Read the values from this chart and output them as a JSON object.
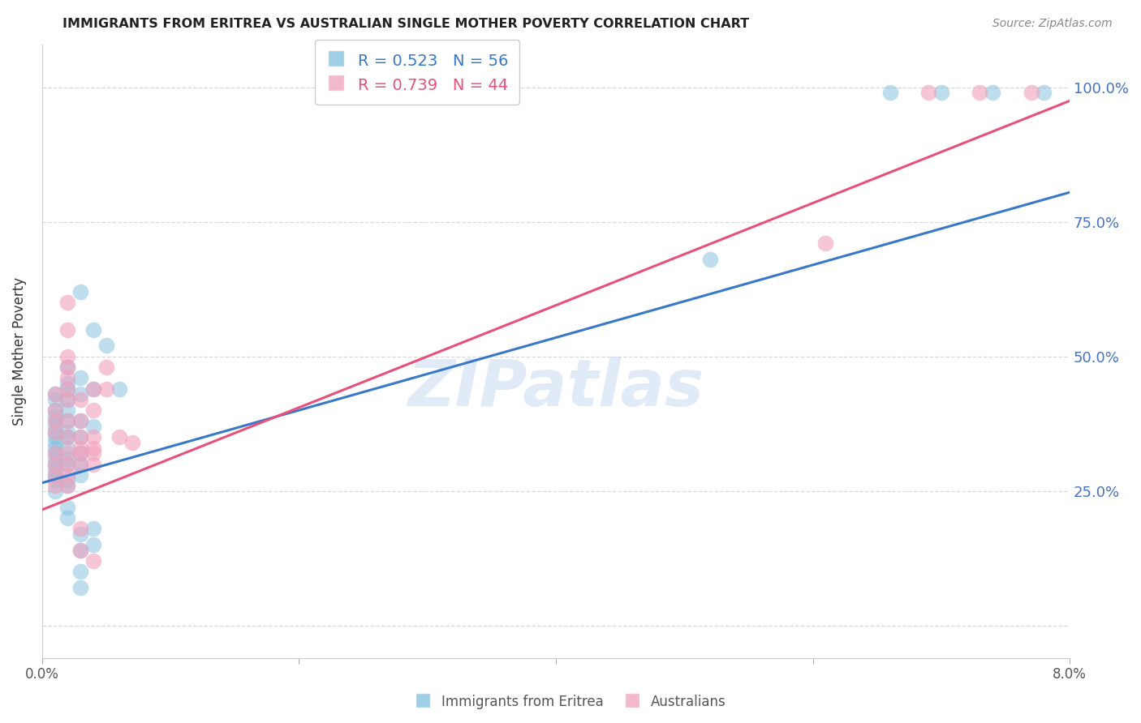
{
  "title": "IMMIGRANTS FROM ERITREA VS AUSTRALIAN SINGLE MOTHER POVERTY CORRELATION CHART",
  "source": "Source: ZipAtlas.com",
  "ylabel": "Single Mother Poverty",
  "yticks": [
    0.0,
    0.25,
    0.5,
    0.75,
    1.0
  ],
  "ytick_labels": [
    "",
    "25.0%",
    "50.0%",
    "75.0%",
    "100.0%"
  ],
  "xlim": [
    0.0,
    0.08
  ],
  "ylim": [
    -0.06,
    1.08
  ],
  "watermark": "ZIPatlas",
  "blue_color": "#7fbfdf",
  "pink_color": "#f0a0bc",
  "blue_line_color": "#3878c8",
  "pink_line_color": "#e8507a",
  "ytick_color": "#4472c4",
  "xtick_color": "#555555",
  "grid_color": "#d8d8d8",
  "blue_scatter": [
    [
      0.001,
      0.32
    ],
    [
      0.001,
      0.38
    ],
    [
      0.001,
      0.34
    ],
    [
      0.001,
      0.3
    ],
    [
      0.001,
      0.36
    ],
    [
      0.001,
      0.28
    ],
    [
      0.001,
      0.33
    ],
    [
      0.001,
      0.31
    ],
    [
      0.001,
      0.29
    ],
    [
      0.001,
      0.27
    ],
    [
      0.001,
      0.35
    ],
    [
      0.001,
      0.4
    ],
    [
      0.001,
      0.37
    ],
    [
      0.001,
      0.43
    ],
    [
      0.001,
      0.42
    ],
    [
      0.001,
      0.39
    ],
    [
      0.001,
      0.25
    ],
    [
      0.002,
      0.38
    ],
    [
      0.002,
      0.42
    ],
    [
      0.002,
      0.36
    ],
    [
      0.002,
      0.33
    ],
    [
      0.002,
      0.31
    ],
    [
      0.002,
      0.4
    ],
    [
      0.002,
      0.45
    ],
    [
      0.002,
      0.35
    ],
    [
      0.002,
      0.48
    ],
    [
      0.002,
      0.44
    ],
    [
      0.002,
      0.3
    ],
    [
      0.002,
      0.27
    ],
    [
      0.002,
      0.22
    ],
    [
      0.002,
      0.26
    ],
    [
      0.002,
      0.2
    ],
    [
      0.003,
      0.46
    ],
    [
      0.003,
      0.43
    ],
    [
      0.003,
      0.38
    ],
    [
      0.003,
      0.35
    ],
    [
      0.003,
      0.32
    ],
    [
      0.003,
      0.3
    ],
    [
      0.003,
      0.28
    ],
    [
      0.003,
      0.14
    ],
    [
      0.003,
      0.17
    ],
    [
      0.003,
      0.1
    ],
    [
      0.003,
      0.07
    ],
    [
      0.003,
      0.62
    ],
    [
      0.004,
      0.44
    ],
    [
      0.004,
      0.37
    ],
    [
      0.004,
      0.18
    ],
    [
      0.004,
      0.15
    ],
    [
      0.004,
      0.55
    ],
    [
      0.005,
      0.52
    ],
    [
      0.006,
      0.44
    ],
    [
      0.052,
      0.68
    ],
    [
      0.066,
      0.99
    ],
    [
      0.07,
      0.99
    ],
    [
      0.074,
      0.99
    ],
    [
      0.078,
      0.99
    ]
  ],
  "pink_scatter": [
    [
      0.001,
      0.32
    ],
    [
      0.001,
      0.36
    ],
    [
      0.001,
      0.3
    ],
    [
      0.001,
      0.28
    ],
    [
      0.001,
      0.26
    ],
    [
      0.001,
      0.4
    ],
    [
      0.001,
      0.38
    ],
    [
      0.001,
      0.43
    ],
    [
      0.002,
      0.44
    ],
    [
      0.002,
      0.5
    ],
    [
      0.002,
      0.42
    ],
    [
      0.002,
      0.48
    ],
    [
      0.002,
      0.38
    ],
    [
      0.002,
      0.35
    ],
    [
      0.002,
      0.32
    ],
    [
      0.002,
      0.3
    ],
    [
      0.002,
      0.28
    ],
    [
      0.002,
      0.46
    ],
    [
      0.002,
      0.55
    ],
    [
      0.002,
      0.6
    ],
    [
      0.002,
      0.26
    ],
    [
      0.003,
      0.42
    ],
    [
      0.003,
      0.38
    ],
    [
      0.003,
      0.35
    ],
    [
      0.003,
      0.32
    ],
    [
      0.003,
      0.3
    ],
    [
      0.003,
      0.33
    ],
    [
      0.003,
      0.14
    ],
    [
      0.003,
      0.18
    ],
    [
      0.004,
      0.44
    ],
    [
      0.004,
      0.4
    ],
    [
      0.004,
      0.35
    ],
    [
      0.004,
      0.32
    ],
    [
      0.004,
      0.3
    ],
    [
      0.004,
      0.33
    ],
    [
      0.004,
      0.12
    ],
    [
      0.005,
      0.48
    ],
    [
      0.005,
      0.44
    ],
    [
      0.006,
      0.35
    ],
    [
      0.007,
      0.34
    ],
    [
      0.061,
      0.71
    ],
    [
      0.069,
      0.99
    ],
    [
      0.073,
      0.99
    ],
    [
      0.077,
      0.99
    ]
  ],
  "blue_line_x": [
    0.0,
    0.08
  ],
  "blue_line_y": [
    0.265,
    0.805
  ],
  "pink_line_x": [
    0.0,
    0.08
  ],
  "pink_line_y": [
    0.215,
    0.975
  ]
}
